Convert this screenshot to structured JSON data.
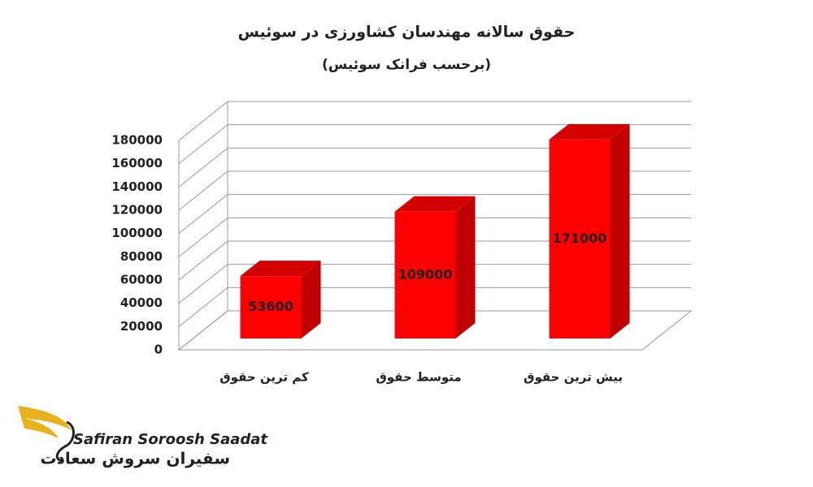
{
  "chart_data": {
    "type": "bar3d",
    "title": "حقوق سالانه مهندسان کشاورزی در سوئیس",
    "subtitle": "(برحسب فرانک سوئیس)",
    "categories": [
      "کم ترین حقوق",
      "متوسط حقوق",
      "بیش ترین حقوق"
    ],
    "values": [
      53600,
      109000,
      171000
    ],
    "color": "#ff0000",
    "ylim": [
      0,
      180000
    ],
    "yticks": [
      0,
      20000,
      40000,
      60000,
      80000,
      100000,
      120000,
      140000,
      160000,
      180000
    ],
    "grid": true
  },
  "logo": {
    "name_en": "Safiran Soroosh Saadat",
    "name_fa": "سفیران سروش سعادت"
  }
}
